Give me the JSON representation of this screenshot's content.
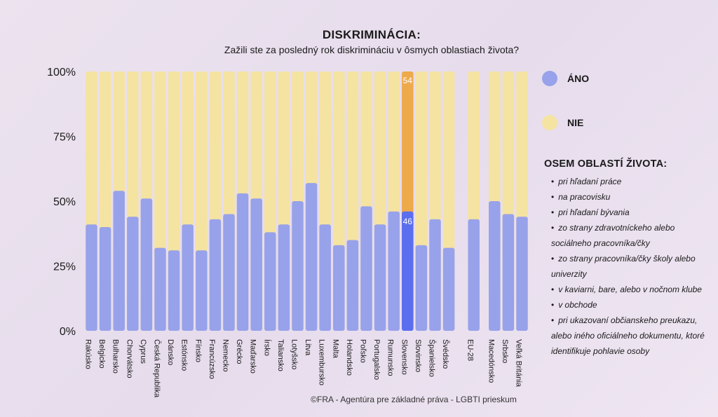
{
  "chart_data": {
    "type": "bar",
    "stacked": true,
    "percent": true,
    "title": "DISKRIMINÁCIA:",
    "subtitle": "Zažili ste za posledný rok diskrimináciu v ôsmych oblastiach života?",
    "ylim": [
      0,
      100
    ],
    "yticks": [
      "0%",
      "25%",
      "50%",
      "75%",
      "100%"
    ],
    "categories": [
      "Rakúsko",
      "Belgicko",
      "Bulharsko",
      "Chorvátsko",
      "Cyprus",
      "Česká Republika",
      "Dánsko",
      "Estónsko",
      "Fínsko",
      "Francúzsko",
      "Nemecko",
      "Grécko",
      "Maďarsko",
      "Írsko",
      "Taliansko",
      "Lotyšsko",
      "Litva",
      "Luxembursko",
      "Malta",
      "Holandsko",
      "Poľsko",
      "Portugalsko",
      "Rumunsko",
      "Slovensko",
      "Slovinsko",
      "Španielsko",
      "Švédsko",
      "EU-28",
      "Macedónsko",
      "Srbsko",
      "Veľká Británia"
    ],
    "series": [
      {
        "name": "ÁNO",
        "color": "#98a2ea",
        "values": [
          41,
          40,
          54,
          44,
          51,
          32,
          31,
          41,
          31,
          43,
          45,
          53,
          51,
          38,
          41,
          50,
          57,
          41,
          33,
          35,
          48,
          41,
          46,
          46,
          33,
          43,
          32,
          43,
          50,
          45,
          44
        ]
      },
      {
        "name": "NIE",
        "color": "#f5e3a1",
        "values": [
          59,
          60,
          46,
          56,
          49,
          68,
          69,
          59,
          69,
          57,
          55,
          47,
          49,
          62,
          59,
          50,
          43,
          59,
          67,
          65,
          52,
          59,
          54,
          54,
          67,
          57,
          68,
          57,
          50,
          55,
          56
        ]
      }
    ],
    "highlight": {
      "category": "Slovensko",
      "yes_color": "#5a6eef",
      "no_color": "#eeaa4a",
      "yes_label": "46",
      "no_label": "54"
    },
    "legend": "right",
    "grid": false
  },
  "legend": {
    "yes": "ÁNO",
    "no": "NIE",
    "yes_color": "#98a2ea",
    "no_color": "#f5e3a1"
  },
  "areas": {
    "title": "OSEM OBLASTÍ ŽIVOTA:",
    "items": [
      "pri hľadaní práce",
      "na pracovisku",
      "pri hľadaní bývania",
      "zo strany zdravotníckeho alebo sociálneho pracovníka/čky",
      "zo strany pracovníka/čky školy alebo univerzity",
      "v kaviarni, bare, alebo v nočnom klube",
      "v obchode",
      "pri ukazovaní občianskeho preukazu, alebo iného oficiálneho dokumentu, ktoré identifikuje pohlavie osoby"
    ]
  },
  "footer": "©FRA - Agentúra pre základné práva - LGBTI prieskum"
}
